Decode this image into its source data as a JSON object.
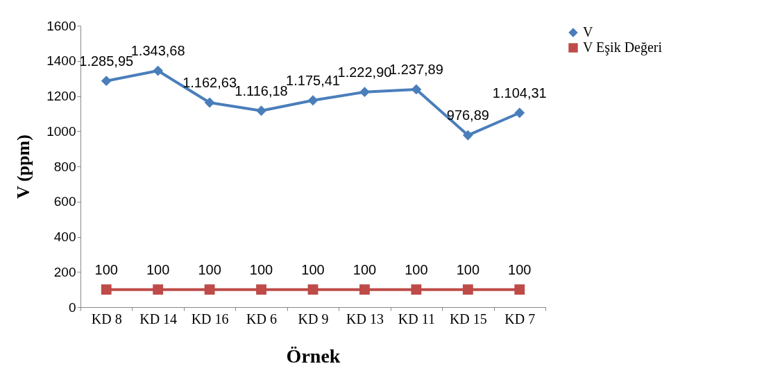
{
  "chart_data": {
    "type": "line",
    "xlabel": "Örnek",
    "ylabel": "V (ppm)",
    "categories": [
      "KD 8",
      "KD 14",
      "KD 16",
      "KD 6",
      "KD 9",
      "KD 13",
      "KD 11",
      "KD 15",
      "KD 7"
    ],
    "series": [
      {
        "name": "V",
        "color": "#4a7ebb",
        "marker": "diamond",
        "values": [
          1285.95,
          1343.68,
          1162.63,
          1116.18,
          1175.41,
          1222.9,
          1237.89,
          976.89,
          1104.31
        ],
        "value_labels": [
          "1.285,95",
          "1.343,68",
          "1.162,63",
          "1.116,18",
          "1.175,41",
          "1.222,90",
          "1.237,89",
          "976,89",
          "1.104,31"
        ]
      },
      {
        "name": "V Eşik Değeri",
        "color": "#be4b48",
        "marker": "square",
        "values": [
          100,
          100,
          100,
          100,
          100,
          100,
          100,
          100,
          100
        ],
        "value_labels": [
          "100",
          "100",
          "100",
          "100",
          "100",
          "100",
          "100",
          "100",
          "100"
        ]
      }
    ],
    "ylim": [
      0,
      1600
    ],
    "yticks": [
      0,
      200,
      400,
      600,
      800,
      1000,
      1200,
      1400,
      1600
    ],
    "grid": false,
    "legend": "right"
  }
}
